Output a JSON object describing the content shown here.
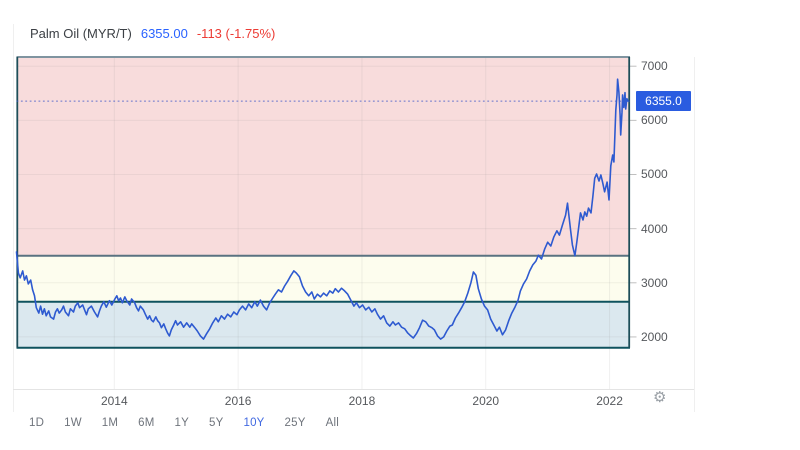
{
  "header": {
    "title": "Palm Oil (MYR/T)",
    "price": "6355.00",
    "change": "-113 (-1.75%)"
  },
  "price_label": "6355.0",
  "y_axis": {
    "ticks": [
      7000,
      6000,
      5000,
      4000,
      3000,
      2000
    ]
  },
  "x_axis": {
    "ticks": [
      2014,
      2016,
      2018,
      2020,
      2022
    ]
  },
  "range_buttons": [
    {
      "label": "1D",
      "active": false
    },
    {
      "label": "1W",
      "active": false
    },
    {
      "label": "1M",
      "active": false
    },
    {
      "label": "6M",
      "active": false
    },
    {
      "label": "1Y",
      "active": false
    },
    {
      "label": "5Y",
      "active": false
    },
    {
      "label": "10Y",
      "active": true
    },
    {
      "label": "25Y",
      "active": false
    },
    {
      "label": "All",
      "active": false
    }
  ],
  "settings_icon": "gear-icon",
  "colors": {
    "price_blue": "#2962ff",
    "change_red": "#ec3b34",
    "badge_blue": "#2a5ce0",
    "line_blue": "#2e5ad0",
    "dotted_price_line": "#3d56c9",
    "band_border_top": "#7f94a0",
    "band_border_slate": "#5a7280",
    "band_border_teal": "#0e525e",
    "band_border_side": "#1d4e59",
    "range_active_blue": "#4169e1"
  },
  "chart_data": {
    "type": "line",
    "title": "Palm Oil (MYR/T)",
    "current_price": 6355.0,
    "change": -113,
    "change_pct": -1.75,
    "x_view": [
      2012.42,
      2022.33
    ],
    "y_view": [
      1020,
      7170
    ],
    "y_ticks": [
      2000,
      3000,
      4000,
      5000,
      6000,
      7000
    ],
    "x_ticks": [
      2014,
      2016,
      2018,
      2020,
      2022
    ],
    "grid": true,
    "bands": [
      {
        "name": "upper-zone",
        "from": 3500,
        "to": 7170,
        "color": "#f8dcdc"
      },
      {
        "name": "middle-zone",
        "from": 2650,
        "to": 3500,
        "color": "#fdfdee"
      },
      {
        "name": "lower-zone",
        "from": 1800,
        "to": 2650,
        "color": "#dbe8ef"
      }
    ],
    "boundary_lines": [
      {
        "value": 7170,
        "color": "#7f94a0"
      },
      {
        "value": 3500,
        "color": "#5a7280"
      },
      {
        "value": 2650,
        "color": "#0e525e"
      },
      {
        "value": 1800,
        "color": "#0e525e"
      }
    ],
    "series": [
      {
        "name": "Palm Oil",
        "color": "#2e5ad0",
        "points": [
          [
            2012.42,
            3570
          ],
          [
            2012.45,
            3180
          ],
          [
            2012.48,
            3090
          ],
          [
            2012.52,
            3220
          ],
          [
            2012.55,
            3050
          ],
          [
            2012.58,
            3130
          ],
          [
            2012.61,
            2980
          ],
          [
            2012.65,
            3050
          ],
          [
            2012.68,
            2870
          ],
          [
            2012.71,
            2760
          ],
          [
            2012.74,
            2540
          ],
          [
            2012.78,
            2440
          ],
          [
            2012.81,
            2570
          ],
          [
            2012.84,
            2420
          ],
          [
            2012.87,
            2520
          ],
          [
            2012.9,
            2390
          ],
          [
            2012.94,
            2480
          ],
          [
            2012.97,
            2370
          ],
          [
            2013.02,
            2330
          ],
          [
            2013.05,
            2460
          ],
          [
            2013.08,
            2520
          ],
          [
            2013.11,
            2440
          ],
          [
            2013.15,
            2500
          ],
          [
            2013.18,
            2570
          ],
          [
            2013.21,
            2460
          ],
          [
            2013.26,
            2390
          ],
          [
            2013.29,
            2520
          ],
          [
            2013.34,
            2460
          ],
          [
            2013.37,
            2570
          ],
          [
            2013.41,
            2630
          ],
          [
            2013.44,
            2540
          ],
          [
            2013.49,
            2590
          ],
          [
            2013.52,
            2500
          ],
          [
            2013.55,
            2410
          ],
          [
            2013.58,
            2520
          ],
          [
            2013.63,
            2570
          ],
          [
            2013.68,
            2460
          ],
          [
            2013.73,
            2370
          ],
          [
            2013.76,
            2480
          ],
          [
            2013.79,
            2570
          ],
          [
            2013.83,
            2650
          ],
          [
            2013.87,
            2550
          ],
          [
            2013.92,
            2670
          ],
          [
            2013.96,
            2590
          ],
          [
            2014.01,
            2700
          ],
          [
            2014.04,
            2760
          ],
          [
            2014.07,
            2670
          ],
          [
            2014.1,
            2720
          ],
          [
            2014.13,
            2630
          ],
          [
            2014.17,
            2740
          ],
          [
            2014.2,
            2670
          ],
          [
            2014.25,
            2590
          ],
          [
            2014.28,
            2700
          ],
          [
            2014.33,
            2630
          ],
          [
            2014.36,
            2540
          ],
          [
            2014.39,
            2480
          ],
          [
            2014.42,
            2570
          ],
          [
            2014.47,
            2500
          ],
          [
            2014.5,
            2420
          ],
          [
            2014.54,
            2330
          ],
          [
            2014.57,
            2390
          ],
          [
            2014.6,
            2310
          ],
          [
            2014.63,
            2280
          ],
          [
            2014.67,
            2370
          ],
          [
            2014.7,
            2300
          ],
          [
            2014.73,
            2260
          ],
          [
            2014.76,
            2170
          ],
          [
            2014.8,
            2240
          ],
          [
            2014.83,
            2150
          ],
          [
            2014.86,
            2070
          ],
          [
            2014.89,
            2020
          ],
          [
            2014.92,
            2130
          ],
          [
            2014.96,
            2220
          ],
          [
            2014.99,
            2300
          ],
          [
            2015.02,
            2220
          ],
          [
            2015.07,
            2280
          ],
          [
            2015.12,
            2180
          ],
          [
            2015.17,
            2260
          ],
          [
            2015.22,
            2180
          ],
          [
            2015.25,
            2240
          ],
          [
            2015.3,
            2170
          ],
          [
            2015.34,
            2110
          ],
          [
            2015.39,
            2020
          ],
          [
            2015.44,
            1960
          ],
          [
            2015.49,
            2060
          ],
          [
            2015.54,
            2150
          ],
          [
            2015.59,
            2260
          ],
          [
            2015.64,
            2350
          ],
          [
            2015.68,
            2280
          ],
          [
            2015.73,
            2390
          ],
          [
            2015.78,
            2330
          ],
          [
            2015.83,
            2420
          ],
          [
            2015.88,
            2370
          ],
          [
            2015.93,
            2460
          ],
          [
            2015.98,
            2410
          ],
          [
            2016.02,
            2500
          ],
          [
            2016.07,
            2570
          ],
          [
            2016.12,
            2500
          ],
          [
            2016.17,
            2610
          ],
          [
            2016.22,
            2540
          ],
          [
            2016.27,
            2650
          ],
          [
            2016.31,
            2570
          ],
          [
            2016.36,
            2680
          ],
          [
            2016.41,
            2570
          ],
          [
            2016.46,
            2500
          ],
          [
            2016.51,
            2630
          ],
          [
            2016.56,
            2720
          ],
          [
            2016.6,
            2790
          ],
          [
            2016.65,
            2870
          ],
          [
            2016.7,
            2830
          ],
          [
            2016.75,
            2940
          ],
          [
            2016.8,
            3030
          ],
          [
            2016.85,
            3130
          ],
          [
            2016.9,
            3220
          ],
          [
            2016.94,
            3180
          ],
          [
            2016.99,
            3110
          ],
          [
            2017.04,
            2940
          ],
          [
            2017.09,
            2830
          ],
          [
            2017.14,
            2760
          ],
          [
            2017.19,
            2830
          ],
          [
            2017.23,
            2700
          ],
          [
            2017.28,
            2790
          ],
          [
            2017.33,
            2740
          ],
          [
            2017.38,
            2810
          ],
          [
            2017.43,
            2760
          ],
          [
            2017.48,
            2850
          ],
          [
            2017.53,
            2810
          ],
          [
            2017.57,
            2890
          ],
          [
            2017.62,
            2830
          ],
          [
            2017.67,
            2900
          ],
          [
            2017.72,
            2850
          ],
          [
            2017.77,
            2790
          ],
          [
            2017.82,
            2680
          ],
          [
            2017.87,
            2570
          ],
          [
            2017.91,
            2630
          ],
          [
            2017.96,
            2540
          ],
          [
            2018.01,
            2590
          ],
          [
            2018.06,
            2500
          ],
          [
            2018.11,
            2550
          ],
          [
            2018.16,
            2460
          ],
          [
            2018.21,
            2520
          ],
          [
            2018.25,
            2420
          ],
          [
            2018.3,
            2330
          ],
          [
            2018.35,
            2390
          ],
          [
            2018.4,
            2260
          ],
          [
            2018.45,
            2200
          ],
          [
            2018.5,
            2280
          ],
          [
            2018.54,
            2220
          ],
          [
            2018.59,
            2260
          ],
          [
            2018.64,
            2180
          ],
          [
            2018.69,
            2150
          ],
          [
            2018.74,
            2070
          ],
          [
            2018.79,
            2020
          ],
          [
            2018.83,
            1980
          ],
          [
            2018.88,
            2060
          ],
          [
            2018.93,
            2170
          ],
          [
            2018.98,
            2310
          ],
          [
            2019.03,
            2280
          ],
          [
            2019.08,
            2200
          ],
          [
            2019.13,
            2170
          ],
          [
            2019.17,
            2130
          ],
          [
            2019.22,
            2020
          ],
          [
            2019.27,
            1960
          ],
          [
            2019.32,
            2000
          ],
          [
            2019.37,
            2110
          ],
          [
            2019.42,
            2200
          ],
          [
            2019.46,
            2220
          ],
          [
            2019.51,
            2350
          ],
          [
            2019.56,
            2440
          ],
          [
            2019.61,
            2540
          ],
          [
            2019.66,
            2650
          ],
          [
            2019.71,
            2810
          ],
          [
            2019.76,
            3000
          ],
          [
            2019.8,
            3200
          ],
          [
            2019.84,
            3140
          ],
          [
            2019.88,
            2890
          ],
          [
            2019.93,
            2700
          ],
          [
            2019.98,
            2570
          ],
          [
            2020.03,
            2500
          ],
          [
            2020.08,
            2330
          ],
          [
            2020.13,
            2220
          ],
          [
            2020.18,
            2110
          ],
          [
            2020.22,
            2180
          ],
          [
            2020.27,
            2040
          ],
          [
            2020.32,
            2130
          ],
          [
            2020.37,
            2300
          ],
          [
            2020.42,
            2440
          ],
          [
            2020.47,
            2550
          ],
          [
            2020.52,
            2670
          ],
          [
            2020.56,
            2850
          ],
          [
            2020.61,
            2980
          ],
          [
            2020.66,
            3070
          ],
          [
            2020.71,
            3220
          ],
          [
            2020.76,
            3330
          ],
          [
            2020.81,
            3400
          ],
          [
            2020.85,
            3510
          ],
          [
            2020.9,
            3440
          ],
          [
            2020.95,
            3620
          ],
          [
            2021.0,
            3750
          ],
          [
            2021.05,
            3680
          ],
          [
            2021.1,
            3850
          ],
          [
            2021.15,
            3960
          ],
          [
            2021.19,
            3880
          ],
          [
            2021.24,
            4070
          ],
          [
            2021.29,
            4250
          ],
          [
            2021.32,
            4470
          ],
          [
            2021.37,
            3970
          ],
          [
            2021.4,
            3700
          ],
          [
            2021.44,
            3500
          ],
          [
            2021.47,
            3750
          ],
          [
            2021.5,
            4010
          ],
          [
            2021.53,
            4290
          ],
          [
            2021.57,
            4160
          ],
          [
            2021.6,
            4310
          ],
          [
            2021.63,
            4230
          ],
          [
            2021.66,
            4380
          ],
          [
            2021.7,
            4290
          ],
          [
            2021.73,
            4600
          ],
          [
            2021.76,
            4930
          ],
          [
            2021.79,
            5010
          ],
          [
            2021.83,
            4880
          ],
          [
            2021.86,
            4990
          ],
          [
            2021.89,
            4840
          ],
          [
            2021.92,
            4680
          ],
          [
            2021.96,
            4860
          ],
          [
            2021.99,
            4530
          ],
          [
            2022.02,
            5160
          ],
          [
            2022.05,
            5360
          ],
          [
            2022.07,
            5230
          ],
          [
            2022.1,
            6190
          ],
          [
            2022.12,
            6470
          ],
          [
            2022.13,
            6760
          ],
          [
            2022.15,
            6520
          ],
          [
            2022.17,
            6100
          ],
          [
            2022.18,
            5730
          ],
          [
            2022.2,
            6150
          ],
          [
            2022.21,
            6470
          ],
          [
            2022.23,
            6240
          ],
          [
            2022.25,
            6510
          ],
          [
            2022.26,
            6210
          ],
          [
            2022.28,
            6400
          ],
          [
            2022.3,
            6355
          ]
        ]
      }
    ]
  }
}
